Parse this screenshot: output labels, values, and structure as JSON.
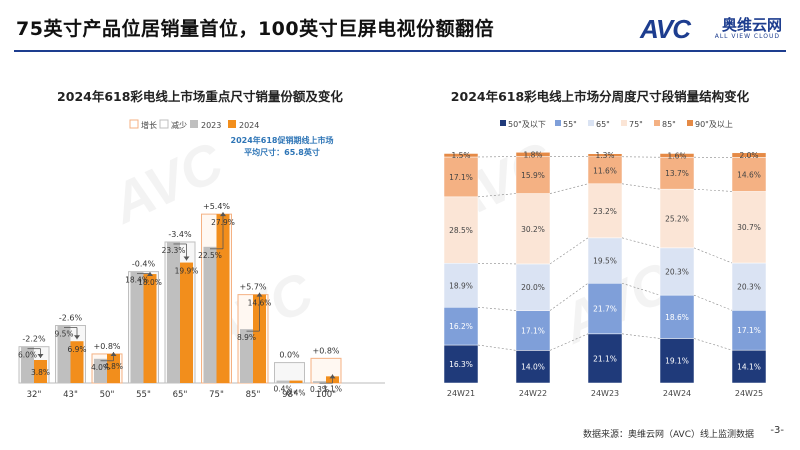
{
  "header": {
    "title": "75英寸产品位居销量首位，100英寸巨屏电视份额翻倍",
    "logo_mark": "AVC",
    "logo_cn": "奥维云网",
    "logo_en": "ALL VIEW CLOUD"
  },
  "footer": {
    "source": "数据来源：奥维云网（AVC）线上监测数据",
    "page": "-3-"
  },
  "colors": {
    "y2023": "#bfbfbf",
    "y2024": "#f28e1c",
    "growth_border": "#f4b183",
    "decline_border": "#bfbfbf",
    "title_rule": "#1d3d8f"
  },
  "chart_data": [
    {
      "type": "bar",
      "title": "2024年618彩电线上市场重点尺寸销量份额及变化",
      "legend": [
        "增长",
        "减少",
        "2023",
        "2024"
      ],
      "legend_position": "top",
      "annotation": [
        "2024年618促销期线上市场",
        "平均尺寸：65.8英寸"
      ],
      "categories": [
        "32\"",
        "43\"",
        "50\"",
        "55\"",
        "65\"",
        "75\"",
        "85\"",
        "98\"",
        "100\""
      ],
      "series": [
        {
          "name": "2023",
          "values": [
            6.0,
            9.5,
            4.0,
            18.4,
            23.3,
            22.5,
            8.9,
            0.4,
            0.3
          ]
        },
        {
          "name": "2024",
          "values": [
            3.8,
            6.9,
            4.8,
            18.0,
            19.9,
            27.9,
            14.6,
            0.4,
            1.1
          ]
        }
      ],
      "value_labels_2023": [
        "6.0%",
        "9.5%",
        "4.0%",
        "18.4%",
        "23.3%",
        "22.5%",
        "8.9%",
        "0.4%",
        "0.3%"
      ],
      "value_labels_2024": [
        "3.8%",
        "6.9%",
        "4.8%",
        "18.0%",
        "19.9%",
        "27.9%",
        "14.6%",
        "0.4%",
        "1.1%"
      ],
      "change_labels": [
        "-2.2%",
        "-2.6%",
        "+0.8%",
        "-0.4%",
        "-3.4%",
        "+5.4%",
        "+5.7%",
        "0.0%",
        "+0.8%"
      ],
      "ylim": [
        0,
        38
      ],
      "grid": false
    },
    {
      "type": "bar",
      "stacked": true,
      "title": "2024年618彩电线上市场分周度尺寸段销量结构变化",
      "legend_position": "top",
      "categories": [
        "24W21",
        "24W22",
        "24W23",
        "24W24",
        "24W25"
      ],
      "series": [
        {
          "name": "50\"及以下",
          "color": "#1f3a7a",
          "values": [
            16.3,
            14.0,
            21.1,
            19.1,
            14.1
          ]
        },
        {
          "name": "55\"",
          "color": "#7f9fd9",
          "values": [
            16.2,
            17.1,
            21.7,
            18.6,
            17.1
          ]
        },
        {
          "name": "65\"",
          "color": "#dae3f3",
          "values": [
            18.9,
            20.0,
            19.5,
            20.3,
            20.3
          ]
        },
        {
          "name": "75\"",
          "color": "#fbe5d6",
          "values": [
            28.5,
            30.2,
            23.2,
            25.2,
            30.7
          ]
        },
        {
          "name": "85\"",
          "color": "#f4b183",
          "values": [
            17.1,
            15.9,
            11.6,
            13.7,
            14.6
          ]
        },
        {
          "name": "90\"及以上",
          "color": "#e58a46",
          "values": [
            1.5,
            1.8,
            1.3,
            1.6,
            2.0
          ]
        }
      ],
      "value_labels": [
        [
          "16.3%",
          "14.0%",
          "21.1%",
          "19.1%",
          "14.1%"
        ],
        [
          "16.2%",
          "17.1%",
          "21.7%",
          "18.6%",
          "17.1%"
        ],
        [
          "18.9%",
          "20.0%",
          "19.5%",
          "20.3%",
          "20.3%"
        ],
        [
          "28.5%",
          "30.2%",
          "23.2%",
          "25.2%",
          "30.7%"
        ],
        [
          "17.1%",
          "15.9%",
          "11.6%",
          "13.7%",
          "14.6%"
        ],
        [
          "1.5%",
          "1.8%",
          "1.3%",
          "1.6%",
          "2.0%"
        ]
      ],
      "ylim": [
        0,
        100
      ],
      "grid": false
    }
  ]
}
